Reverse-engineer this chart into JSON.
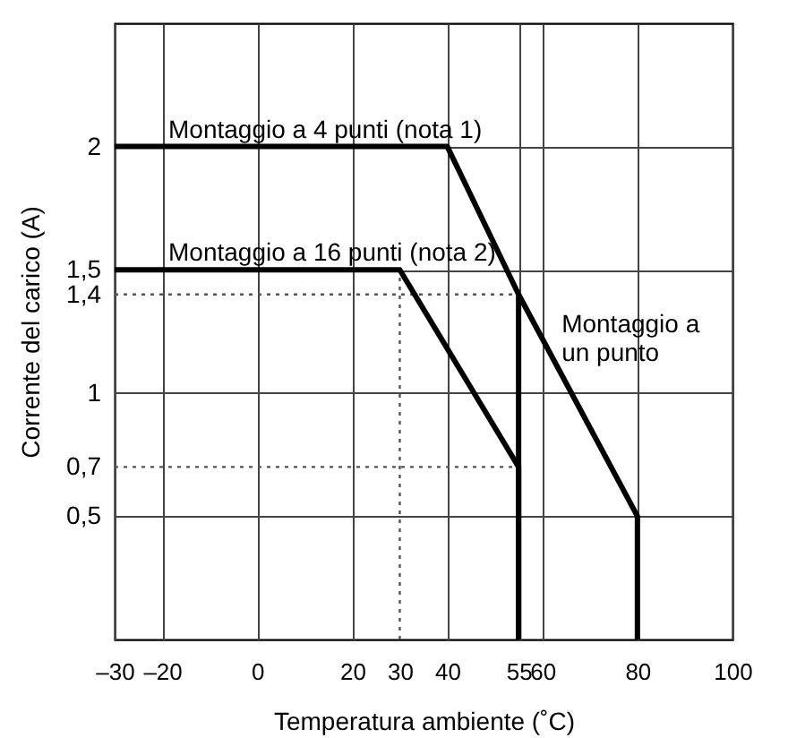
{
  "chart_data": {
    "type": "line",
    "xlabel": "Temperatura ambiente (˚C)",
    "ylabel": "Corrente del carico (A)",
    "series": [
      {
        "name": "Montaggio a 4 punti (nota 1)",
        "color": "#000000",
        "x": [
          -30,
          40,
          55,
          55
        ],
        "values": [
          2,
          2,
          1.4,
          0
        ]
      },
      {
        "name": "Montaggio a 16 punti (nota 2)",
        "color": "#000000",
        "x": [
          -30,
          30,
          55,
          55
        ],
        "values": [
          1.5,
          1.5,
          0.7,
          0
        ]
      },
      {
        "name": "Montaggio a un punto",
        "color": "#000000",
        "x": [
          55,
          80,
          80
        ],
        "values": [
          1.4,
          0.5,
          0
        ]
      }
    ],
    "xlim": [
      -30,
      100
    ],
    "ylim": [
      0,
      2.5
    ],
    "xticks": [
      {
        "value": -30,
        "label": "–30"
      },
      {
        "value": -20,
        "label": "–20"
      },
      0,
      20,
      30,
      40,
      55,
      60,
      80,
      100
    ],
    "yticks": [
      {
        "value": 0.5,
        "label": "0,5"
      },
      {
        "value": 0.7,
        "label": "0,7"
      },
      1,
      {
        "value": 1.4,
        "label": "1,4"
      },
      {
        "value": 1.5,
        "label": "1,5"
      },
      2
    ],
    "ref_lines": [
      {
        "axis": "y",
        "value": 1.4,
        "line_style": "dotted",
        "color": "#555555"
      },
      {
        "axis": "y",
        "value": 0.7,
        "line_style": "dotted",
        "color": "#555555"
      },
      {
        "axis": "x",
        "value": 30,
        "line_style": "dotted",
        "color": "#555555"
      }
    ],
    "grid": true,
    "marker": "none",
    "line_style": "solid"
  }
}
